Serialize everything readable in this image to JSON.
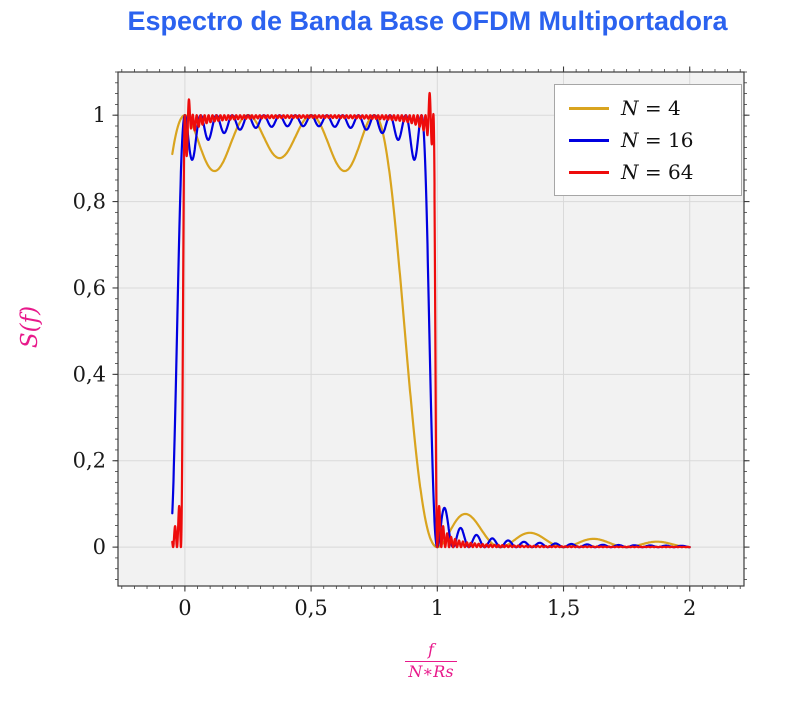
{
  "chart_data": {
    "type": "line",
    "title": "Espectro de Banda Base OFDM Multiportadora",
    "title_color": "#2b62ef",
    "ylabel": "S(f)",
    "xlabel_fraction": {
      "numerator": "f",
      "denominator": "N∗Rs"
    },
    "axis_label_color": "#e8198b",
    "tick_label_color": "#1a1a1a",
    "plot_bg": "#f2f2f2",
    "grid_color": "#d9d9d9",
    "frame_color": "#3c3c3c",
    "tick_color": "#3c3c3c",
    "grid": "major",
    "legend_position": "top-right",
    "x_view_range": [
      -0.265,
      2.215
    ],
    "y_view_range": [
      -0.09,
      1.1
    ],
    "x_data_range": [
      -0.05,
      2.0
    ],
    "x_minor_step": 0.05,
    "y_minor_step": 0.025,
    "x_ticks": [
      {
        "v": 0,
        "label": "0"
      },
      {
        "v": 0.5,
        "label": "0,5"
      },
      {
        "v": 1,
        "label": "1"
      },
      {
        "v": 1.5,
        "label": "1,5"
      },
      {
        "v": 2,
        "label": "2"
      }
    ],
    "y_ticks": [
      {
        "v": 0,
        "label": "0"
      },
      {
        "v": 0.2,
        "label": "0,2"
      },
      {
        "v": 0.4,
        "label": "0,4"
      },
      {
        "v": 0.6,
        "label": "0,6"
      },
      {
        "v": 0.8,
        "label": "0,8"
      },
      {
        "v": 1,
        "label": "1"
      }
    ],
    "model": "S(x) = sum_{k=0}^{N-1} sinc^2(N*x - k),  x = f/(N*Rs); flat ~1 over 0..1 with ripples, sidelobes outside band",
    "series": [
      {
        "name": "N = 4",
        "label_symbol": "N",
        "label_rest": " = 4",
        "N": 4,
        "color": "#d9a41f",
        "width": 2.2
      },
      {
        "name": "N = 16",
        "label_symbol": "N",
        "label_rest": " = 16",
        "N": 16,
        "color": "#0000e0",
        "width": 2.2
      },
      {
        "name": "N = 64",
        "label_symbol": "N",
        "label_rest": " = 64",
        "N": 64,
        "color": "#ee0c0c",
        "width": 2.2,
        "edge_spikes": [
          {
            "x": 0.018,
            "amp": 0.04,
            "w": 0.007
          },
          {
            "x": 0.972,
            "amp": 0.06,
            "w": 0.007
          }
        ]
      }
    ]
  }
}
